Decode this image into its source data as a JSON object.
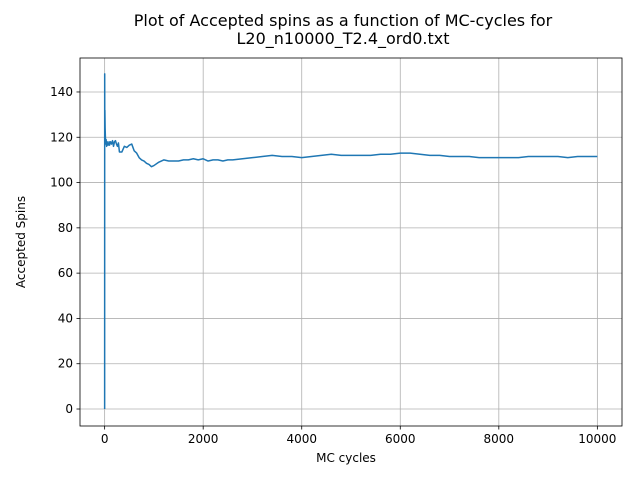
{
  "chart_data": {
    "type": "line",
    "title_lines": [
      "Plot of Accepted spins as a function of MC-cycles for",
      "L20_n10000_T2.4_ord0.txt"
    ],
    "xlabel": "MC cycles",
    "ylabel": "Accepted Spins",
    "xlim": [
      -500,
      10500
    ],
    "ylim": [
      -7.5,
      155
    ],
    "xticks": [
      0,
      2000,
      4000,
      6000,
      8000,
      10000
    ],
    "yticks": [
      0,
      20,
      40,
      60,
      80,
      100,
      120,
      140
    ],
    "grid": true,
    "line_color": "#1f77b4",
    "series": [
      {
        "x": [
          0,
          1,
          3,
          5,
          10,
          20,
          30,
          40,
          50,
          60,
          70,
          80,
          90,
          100,
          120,
          140,
          160,
          180,
          200,
          220,
          240,
          260,
          280,
          300,
          350,
          400,
          450,
          500,
          550,
          600,
          650,
          700,
          750,
          800,
          850,
          900,
          950,
          1000,
          1100,
          1200,
          1300,
          1400,
          1500,
          1600,
          1700,
          1800,
          1900,
          2000,
          2100,
          2200,
          2300,
          2400,
          2500,
          2600,
          2800,
          3000,
          3200,
          3400,
          3600,
          3800,
          4000,
          4200,
          4400,
          4600,
          4800,
          5000,
          5200,
          5400,
          5600,
          5800,
          6000,
          6200,
          6400,
          6600,
          6800,
          7000,
          7200,
          7400,
          7600,
          7800,
          8000,
          8200,
          8400,
          8600,
          8800,
          9000,
          9200,
          9400,
          9600,
          9800,
          10000
        ],
        "y": [
          0,
          148,
          121,
          132,
          124,
          117,
          119,
          116,
          118,
          117,
          116.5,
          117,
          118,
          116.5,
          118,
          117,
          118.5,
          116,
          118,
          118.5,
          117,
          116,
          117.5,
          113.5,
          113.5,
          116,
          115.5,
          116.5,
          117,
          114,
          113,
          111,
          110,
          109.5,
          108.5,
          108,
          107,
          107.5,
          109,
          110,
          109.5,
          109.5,
          109.5,
          110,
          110,
          110.5,
          110,
          110.5,
          109.5,
          110,
          110,
          109.5,
          110,
          110,
          110.5,
          111,
          111.5,
          112,
          111.5,
          111.5,
          111,
          111.5,
          112,
          112.5,
          112,
          112,
          112,
          112,
          112.5,
          112.5,
          113,
          113,
          112.5,
          112,
          112,
          111.5,
          111.5,
          111.5,
          111,
          111,
          111,
          111,
          111,
          111.5,
          111.5,
          111.5,
          111.5,
          111,
          111.5,
          111.5,
          111.5
        ]
      }
    ]
  }
}
